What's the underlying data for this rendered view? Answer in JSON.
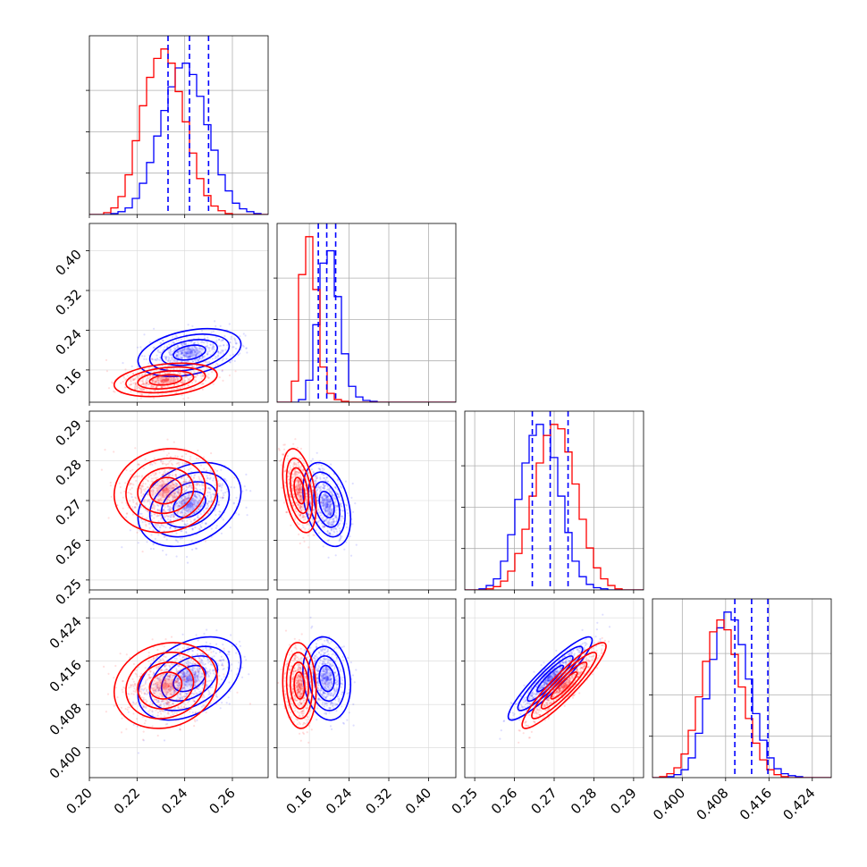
{
  "chart_data": {
    "type": "corner",
    "grid": true,
    "series": [
      {
        "name": "",
        "color": "#0000ff",
        "means": [
          0.242,
          0.195,
          0.269,
          0.4128
        ],
        "sds": [
          0.009,
          0.02,
          0.0044,
          0.0032
        ],
        "corr": [
          [
            1,
            0.35,
            0.3,
            0.4
          ],
          [
            0.35,
            1,
            -0.35,
            -0.15
          ],
          [
            0.3,
            -0.35,
            1,
            0.92
          ],
          [
            0.4,
            -0.15,
            0.92,
            1
          ]
        ],
        "quantiles": [
          [
            0.233,
            0.242,
            0.25
          ],
          [
            0.178,
            0.195,
            0.213
          ],
          [
            0.2645,
            0.269,
            0.2735
          ],
          [
            0.4097,
            0.4128,
            0.4158
          ]
        ]
      },
      {
        "name": "",
        "color": "#ff0000",
        "means": [
          0.232,
          0.14,
          0.2725,
          0.4115
        ],
        "sds": [
          0.009,
          0.014,
          0.0044,
          0.0033
        ],
        "corr": [
          [
            1,
            0.3,
            0.1,
            0.15
          ],
          [
            0.3,
            1,
            -0.4,
            -0.1
          ],
          [
            0.1,
            -0.4,
            1,
            0.92
          ],
          [
            0.15,
            -0.1,
            0.92,
            1
          ]
        ]
      }
    ],
    "panels": [
      {
        "xlim": [
          0.2,
          0.275
        ],
        "ylim": [
          0.25,
          0.292
        ],
        "xticks": [
          0.2,
          0.22,
          0.24,
          0.26
        ],
        "xtick_labels": [
          "0.20",
          "0.22",
          "0.24",
          "0.26"
        ]
      },
      {
        "xlim": [
          0.095,
          0.455
        ],
        "yticks": [
          0.16,
          0.24,
          0.32,
          0.4
        ],
        "ytick_labels": [
          "0.16",
          "0.24",
          "0.32",
          "0.40"
        ],
        "xticks": [
          0.16,
          0.24,
          0.32,
          0.4
        ],
        "xtick_labels": [
          "0.16",
          "0.24",
          "0.32",
          "0.40"
        ]
      },
      {
        "xlim": [
          0.2475,
          0.2925
        ],
        "yticks": [
          0.25,
          0.26,
          0.27,
          0.28,
          0.29
        ],
        "ytick_labels": [
          "0.25",
          "0.26",
          "0.27",
          "0.28",
          "0.29"
        ],
        "xticks": [
          0.25,
          0.26,
          0.27,
          0.28,
          0.29
        ],
        "xtick_labels": [
          "0.25",
          "0.26",
          "0.27",
          "0.28",
          "0.29"
        ]
      },
      {
        "xlim": [
          0.3945,
          0.4275
        ],
        "yticks": [
          0.4,
          0.408,
          0.416,
          0.424
        ],
        "ytick_labels": [
          "0.400",
          "0.408",
          "0.416",
          "0.424"
        ],
        "xticks": [
          0.4,
          0.408,
          0.416,
          0.424
        ],
        "xtick_labels": [
          "0.400",
          "0.408",
          "0.416",
          "0.424"
        ]
      }
    ],
    "histograms": [
      {
        "bins": [
          0.2,
          0.275,
          25
        ],
        "series": [
          [
            0,
            0,
            0,
            1,
            3,
            7,
            17,
            33,
            55,
            83,
            110,
            135,
            155,
            160,
            148,
            125,
            95,
            68,
            42,
            25,
            12,
            6,
            3,
            1,
            0
          ],
          [
            0,
            0,
            2,
            7,
            19,
            42,
            78,
            115,
            145,
            165,
            175,
            160,
            130,
            98,
            65,
            38,
            20,
            9,
            4,
            1,
            0,
            0,
            0,
            0,
            0
          ]
        ]
      },
      {
        "bins": [
          0.095,
          0.455,
          25
        ],
        "series": [
          [
            0,
            0,
            0,
            3,
            25,
            88,
            158,
            172,
            120,
            55,
            18,
            6,
            2,
            1,
            0,
            0,
            0,
            0,
            0,
            0,
            0,
            0,
            0,
            0,
            0
          ],
          [
            0,
            0,
            24,
            145,
            188,
            128,
            40,
            10,
            3,
            1,
            0,
            0,
            0,
            0,
            0,
            0,
            0,
            0,
            0,
            0,
            0,
            0,
            0,
            0,
            0
          ]
        ]
      },
      {
        "bins": [
          0.2475,
          0.2925,
          25
        ],
        "series": [
          [
            0,
            0,
            1,
            4,
            10,
            26,
            50,
            82,
            115,
            140,
            150,
            140,
            120,
            85,
            52,
            26,
            12,
            5,
            2,
            1,
            0,
            0,
            0,
            0,
            0
          ],
          [
            0,
            0,
            0,
            1,
            3,
            8,
            17,
            33,
            55,
            85,
            115,
            140,
            150,
            146,
            125,
            96,
            64,
            38,
            20,
            10,
            4,
            1,
            0,
            0,
            0
          ]
        ]
      },
      {
        "bins": [
          0.3945,
          0.4275,
          25
        ],
        "series": [
          [
            0,
            0,
            1,
            3,
            8,
            20,
            45,
            80,
            120,
            152,
            168,
            160,
            135,
            100,
            65,
            38,
            20,
            9,
            4,
            2,
            1,
            0,
            0,
            0,
            0
          ],
          [
            0,
            1,
            4,
            10,
            24,
            48,
            82,
            118,
            148,
            160,
            150,
            125,
            92,
            60,
            35,
            18,
            8,
            3,
            1,
            0,
            0,
            0,
            0,
            0,
            0
          ]
        ]
      }
    ]
  }
}
